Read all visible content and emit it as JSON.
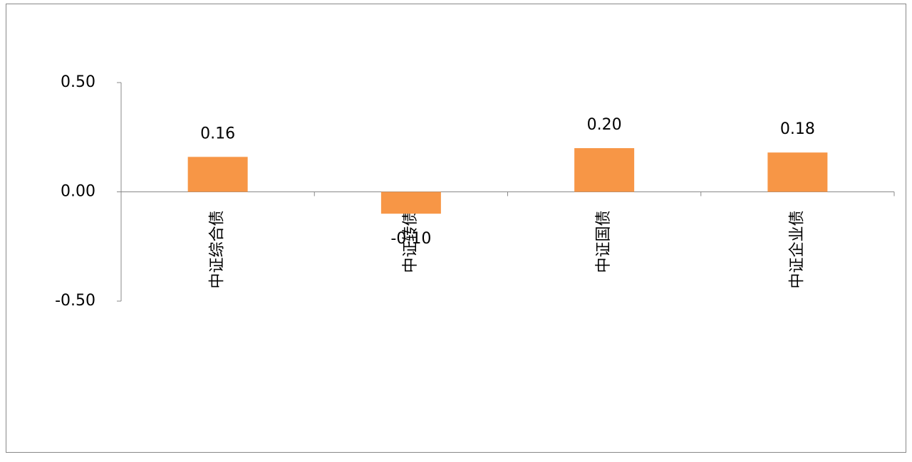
{
  "chart_data": {
    "type": "bar",
    "categories": [
      "中证综合债",
      "中证转债",
      "中证国债",
      "中证企业债"
    ],
    "values": [
      0.16,
      -0.1,
      0.2,
      0.18
    ],
    "value_labels": [
      "0.16",
      "-0.10",
      "0.20",
      "0.18"
    ],
    "color": "#f79646",
    "ylim": [
      -0.5,
      0.5
    ],
    "yticks": [
      {
        "value": -0.5,
        "label": "-0.50"
      },
      {
        "value": 0,
        "label": "0.00"
      },
      {
        "value": 0.5,
        "label": "0.50"
      }
    ],
    "grid": false
  }
}
